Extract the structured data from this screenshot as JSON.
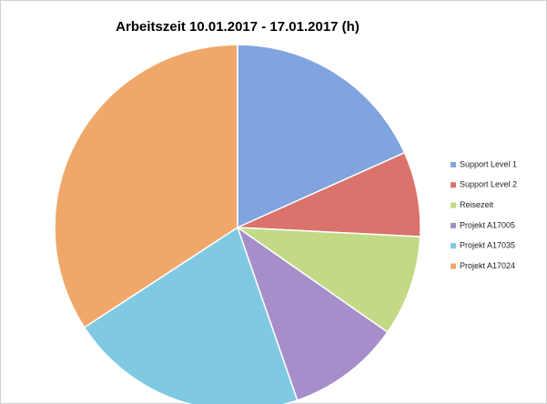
{
  "chart_data": {
    "type": "pie",
    "title": "Arbeitszeit 10.01.2017 - 17.01.2017 (h)",
    "categories": [
      "Support Level 1",
      "Support Level 2",
      "Reisezeit",
      "Projekt A17005",
      "Projekt A17035",
      "Projekt A17024"
    ],
    "values": [
      18.3,
      7.5,
      8.9,
      10.0,
      21.1,
      34.2
    ],
    "colors": [
      "#7fa4de",
      "#d9736c",
      "#c2da86",
      "#a58ec9",
      "#80c9e2",
      "#efa86a"
    ]
  }
}
